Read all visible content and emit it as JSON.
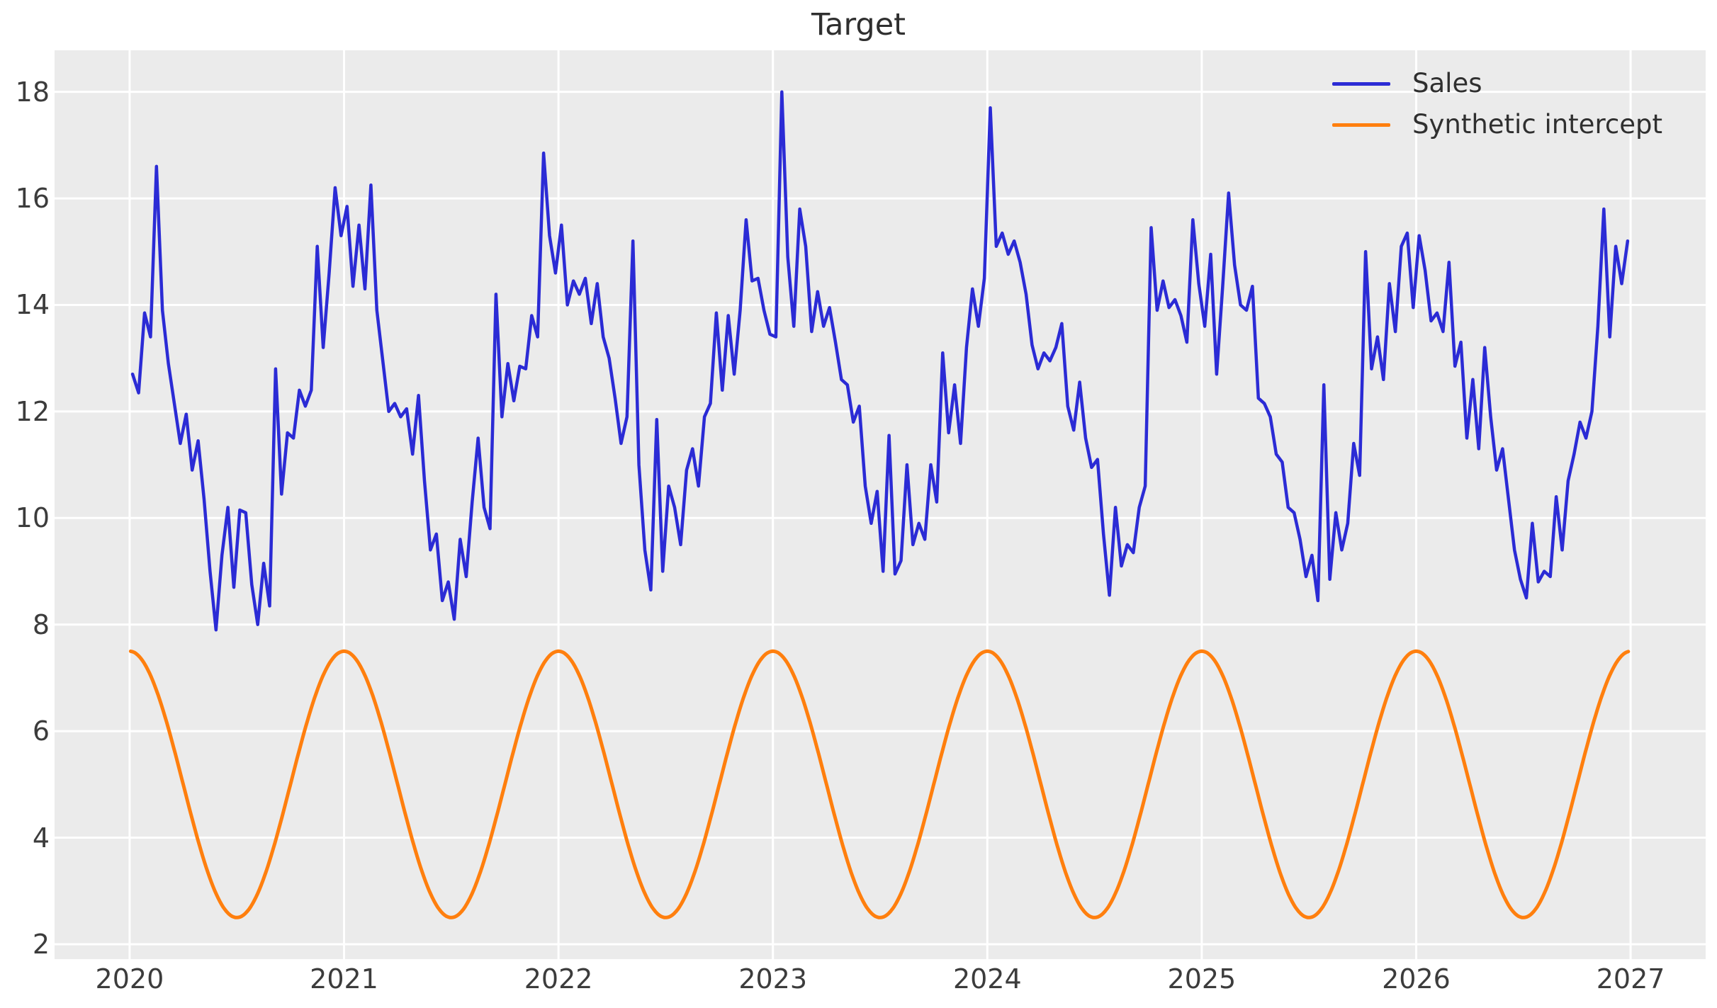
{
  "chart": {
    "title": "Target",
    "legend": {
      "sales_label": "Sales",
      "synthetic_label": "Synthetic intercept"
    }
  },
  "chart_data": {
    "type": "line",
    "title": "Target",
    "xlabel": "",
    "ylabel": "",
    "xlim": [
      2019.65,
      2027.35
    ],
    "ylim": [
      1.72,
      18.78
    ],
    "x_ticks": [
      2020,
      2021,
      2022,
      2023,
      2024,
      2025,
      2026,
      2027
    ],
    "y_ticks": [
      2,
      4,
      6,
      8,
      10,
      12,
      14,
      16,
      18
    ],
    "grid": true,
    "grid_color": "#ffffff",
    "plot_background": "#ebebeb",
    "legend_position": "upper right",
    "series": [
      {
        "name": "Sales",
        "color": "#2b2bd5",
        "line_width": 4.5,
        "sampling": "uniform",
        "t_start": 2020.014,
        "dt_years": 0.0277778,
        "values": [
          12.7,
          12.35,
          13.85,
          13.4,
          16.6,
          13.9,
          12.9,
          12.15,
          11.4,
          11.95,
          10.9,
          11.45,
          10.35,
          9.0,
          7.9,
          9.3,
          10.2,
          8.7,
          10.15,
          10.1,
          8.75,
          8.0,
          9.15,
          8.35,
          12.8,
          10.45,
          11.6,
          11.5,
          12.4,
          12.1,
          12.4,
          15.1,
          13.2,
          14.6,
          16.2,
          15.3,
          15.85,
          14.35,
          15.5,
          14.3,
          16.25,
          13.9,
          12.95,
          12.0,
          12.15,
          11.9,
          12.05,
          11.2,
          12.3,
          10.7,
          9.4,
          9.7,
          8.45,
          8.8,
          8.1,
          9.6,
          8.9,
          10.3,
          11.5,
          10.2,
          9.8,
          14.2,
          11.9,
          12.9,
          12.2,
          12.85,
          12.8,
          13.8,
          13.4,
          16.85,
          15.3,
          14.6,
          15.5,
          14.0,
          14.45,
          14.2,
          14.5,
          13.65,
          14.4,
          13.4,
          13.0,
          12.25,
          11.4,
          11.9,
          15.2,
          11.0,
          9.4,
          8.65,
          11.85,
          9.0,
          10.6,
          10.2,
          9.5,
          10.9,
          11.3,
          10.6,
          11.9,
          12.15,
          13.85,
          12.4,
          13.8,
          12.7,
          13.9,
          15.6,
          14.45,
          14.5,
          13.9,
          13.45,
          13.4,
          18.0,
          14.9,
          13.6,
          15.8,
          15.1,
          13.5,
          14.25,
          13.6,
          13.95,
          13.3,
          12.6,
          12.5,
          11.8,
          12.1,
          10.6,
          9.9,
          10.5,
          9.0,
          11.55,
          8.95,
          9.2,
          11.0,
          9.5,
          9.9,
          9.6,
          11.0,
          10.3,
          13.1,
          11.6,
          12.5,
          11.4,
          13.2,
          14.3,
          13.6,
          14.5,
          17.7,
          15.1,
          15.35,
          14.95,
          15.2,
          14.8,
          14.2,
          13.25,
          12.8,
          13.1,
          12.95,
          13.2,
          13.65,
          12.1,
          11.65,
          12.55,
          11.5,
          10.95,
          11.1,
          9.7,
          8.55,
          10.2,
          9.1,
          9.5,
          9.35,
          10.2,
          10.6,
          15.45,
          13.9,
          14.45,
          13.95,
          14.1,
          13.8,
          13.3,
          15.6,
          14.4,
          13.6,
          14.95,
          12.7,
          14.35,
          16.1,
          14.75,
          14.0,
          13.9,
          14.35,
          12.25,
          12.15,
          11.9,
          11.2,
          11.05,
          10.2,
          10.1,
          9.6,
          8.9,
          9.3,
          8.45,
          12.5,
          8.85,
          10.1,
          9.4,
          9.9,
          11.4,
          10.8,
          15.0,
          12.8,
          13.4,
          12.6,
          14.4,
          13.5,
          15.1,
          15.35,
          13.95,
          15.3,
          14.65,
          13.7,
          13.85,
          13.5,
          14.8,
          12.85,
          13.3,
          11.5,
          12.6,
          11.3,
          13.2,
          11.9,
          10.9,
          11.3,
          10.35,
          9.4,
          8.85,
          8.5,
          9.9,
          8.8,
          9.0,
          8.9,
          10.4,
          9.4,
          10.7,
          11.2,
          11.8,
          11.5,
          12.0,
          13.6,
          15.8,
          13.4,
          15.1,
          14.4,
          15.2
        ]
      },
      {
        "name": "Synthetic intercept",
        "color": "#ff7f0e",
        "line_width": 5,
        "sampling": "generator",
        "generator": {
          "kind": "cosine",
          "mean": 5,
          "amplitude": 2.5,
          "period_years": 1,
          "peak_at": 2020.0,
          "t_start": 2020.005,
          "t_end": 2026.99,
          "step": 0.008
        }
      }
    ]
  }
}
